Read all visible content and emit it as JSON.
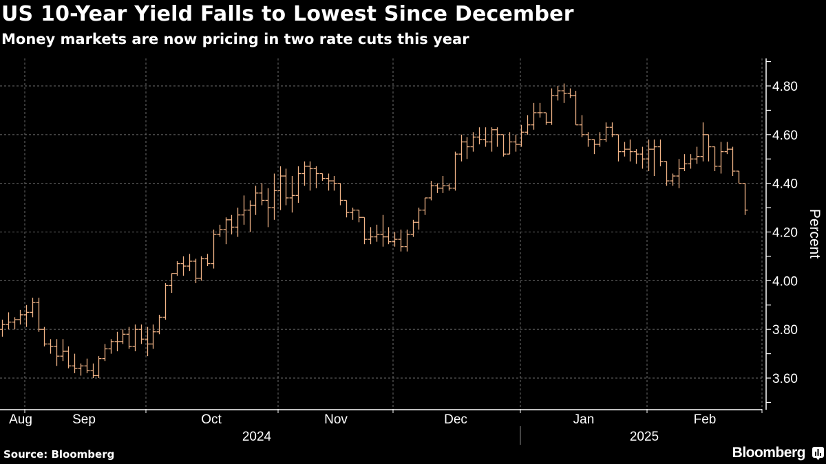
{
  "header": {
    "title": "US 10-Year Yield Falls to Lowest Since December",
    "subtitle": "Money markets are now pricing in two rate cuts this year"
  },
  "footer": {
    "source": "Source: Bloomberg",
    "brand": "Bloomberg"
  },
  "colors": {
    "background": "#000000",
    "bars": "#f2b487",
    "grid": "#6e6e6e",
    "text": "#ffffff"
  },
  "chart_data": {
    "type": "ohlc",
    "title": "US 10-Year Yield Falls to Lowest Since December",
    "subtitle": "Money markets are now pricing in two rate cuts this year",
    "xlabel": "",
    "ylabel": "Percent",
    "ylim": [
      3.54,
      4.9
    ],
    "yticks": [
      3.6,
      3.8,
      4.0,
      4.2,
      4.4,
      4.6,
      4.8
    ],
    "ytick_labels": [
      "3.60",
      "3.80",
      "4.00",
      "4.20",
      "4.40",
      "4.60",
      "4.80"
    ],
    "y_axis_position": "right",
    "grid": true,
    "x_month_labels": [
      "Aug",
      "Sep",
      "Oct",
      "Nov",
      "Dec",
      "Jan",
      "Feb"
    ],
    "x_year_labels": [
      "2024",
      "2025"
    ],
    "x_start": "2024-07-24",
    "x_end": "2025-02-21",
    "series": [
      {
        "name": "US 10-Year Yield",
        "ohlc": [
          [
            3.8,
            3.84,
            3.77,
            3.82
          ],
          [
            3.82,
            3.87,
            3.8,
            3.83
          ],
          [
            3.83,
            3.85,
            3.8,
            3.84
          ],
          [
            3.84,
            3.88,
            3.82,
            3.86
          ],
          [
            3.86,
            3.9,
            3.81,
            3.87
          ],
          [
            3.87,
            3.93,
            3.85,
            3.91
          ],
          [
            3.91,
            3.93,
            3.79,
            3.8
          ],
          [
            3.8,
            3.81,
            3.73,
            3.74
          ],
          [
            3.74,
            3.76,
            3.7,
            3.73
          ],
          [
            3.73,
            3.76,
            3.65,
            3.69
          ],
          [
            3.69,
            3.76,
            3.67,
            3.71
          ],
          [
            3.71,
            3.73,
            3.64,
            3.65
          ],
          [
            3.65,
            3.7,
            3.62,
            3.64
          ],
          [
            3.64,
            3.66,
            3.61,
            3.65
          ],
          [
            3.65,
            3.68,
            3.62,
            3.63
          ],
          [
            3.63,
            3.66,
            3.6,
            3.61
          ],
          [
            3.61,
            3.69,
            3.6,
            3.68
          ],
          [
            3.68,
            3.74,
            3.67,
            3.72
          ],
          [
            3.72,
            3.76,
            3.7,
            3.75
          ],
          [
            3.75,
            3.79,
            3.71,
            3.75
          ],
          [
            3.75,
            3.8,
            3.74,
            3.78
          ],
          [
            3.78,
            3.81,
            3.72,
            3.73
          ],
          [
            3.73,
            3.82,
            3.71,
            3.8
          ],
          [
            3.8,
            3.82,
            3.74,
            3.76
          ],
          [
            3.76,
            3.81,
            3.69,
            3.74
          ],
          [
            3.74,
            3.82,
            3.72,
            3.79
          ],
          [
            3.79,
            3.86,
            3.78,
            3.85
          ],
          [
            3.85,
            3.99,
            3.84,
            3.98
          ],
          [
            3.98,
            4.03,
            3.95,
            4.03
          ],
          [
            4.03,
            4.08,
            4.02,
            4.07
          ],
          [
            4.07,
            4.1,
            4.02,
            4.06
          ],
          [
            4.06,
            4.11,
            4.04,
            4.08
          ],
          [
            4.08,
            4.09,
            3.99,
            4.01
          ],
          [
            4.01,
            4.1,
            4.0,
            4.09
          ],
          [
            4.09,
            4.11,
            4.06,
            4.07
          ],
          [
            4.07,
            4.21,
            4.05,
            4.19
          ],
          [
            4.19,
            4.23,
            4.18,
            4.21
          ],
          [
            4.21,
            4.26,
            4.15,
            4.25
          ],
          [
            4.25,
            4.27,
            4.19,
            4.22
          ],
          [
            4.22,
            4.3,
            4.18,
            4.27
          ],
          [
            4.27,
            4.35,
            4.23,
            4.29
          ],
          [
            4.29,
            4.33,
            4.2,
            4.31
          ],
          [
            4.31,
            4.39,
            4.27,
            4.36
          ],
          [
            4.36,
            4.4,
            4.31,
            4.33
          ],
          [
            4.33,
            4.38,
            4.22,
            4.3
          ],
          [
            4.3,
            4.44,
            4.25,
            4.37
          ],
          [
            4.37,
            4.47,
            4.29,
            4.43
          ],
          [
            4.43,
            4.46,
            4.31,
            4.34
          ],
          [
            4.34,
            4.43,
            4.28,
            4.35
          ],
          [
            4.35,
            4.47,
            4.32,
            4.44
          ],
          [
            4.44,
            4.49,
            4.39,
            4.47
          ],
          [
            4.47,
            4.49,
            4.37,
            4.46
          ],
          [
            4.46,
            4.47,
            4.38,
            4.44
          ],
          [
            4.44,
            4.43,
            4.41,
            4.42
          ],
          [
            4.42,
            4.44,
            4.37,
            4.41
          ],
          [
            4.41,
            4.43,
            4.37,
            4.4
          ],
          [
            4.4,
            4.36,
            4.31,
            4.33
          ],
          [
            4.33,
            4.32,
            4.26,
            4.28
          ],
          [
            4.28,
            4.3,
            4.25,
            4.29
          ],
          [
            4.29,
            4.29,
            4.24,
            4.26
          ],
          [
            4.26,
            4.25,
            4.15,
            4.17
          ],
          [
            4.17,
            4.22,
            4.15,
            4.18
          ],
          [
            4.18,
            4.23,
            4.16,
            4.19
          ],
          [
            4.19,
            4.27,
            4.14,
            4.18
          ],
          [
            4.18,
            4.22,
            4.15,
            4.16
          ],
          [
            4.16,
            4.2,
            4.14,
            4.17
          ],
          [
            4.17,
            4.21,
            4.12,
            4.14
          ],
          [
            4.14,
            4.21,
            4.12,
            4.19
          ],
          [
            4.19,
            4.25,
            4.18,
            4.24
          ],
          [
            4.24,
            4.3,
            4.21,
            4.29
          ],
          [
            4.29,
            4.33,
            4.27,
            4.34
          ],
          [
            4.34,
            4.41,
            4.33,
            4.39
          ],
          [
            4.39,
            4.4,
            4.36,
            4.38
          ],
          [
            4.38,
            4.43,
            4.36,
            4.39
          ],
          [
            4.39,
            4.4,
            4.37,
            4.38
          ],
          [
            4.38,
            4.53,
            4.37,
            4.52
          ],
          [
            4.52,
            4.6,
            4.49,
            4.57
          ],
          [
            4.57,
            4.59,
            4.5,
            4.55
          ],
          [
            4.55,
            4.61,
            4.53,
            4.59
          ],
          [
            4.59,
            4.63,
            4.56,
            4.58
          ],
          [
            4.58,
            4.63,
            4.55,
            4.57
          ],
          [
            4.57,
            4.63,
            4.53,
            4.62
          ],
          [
            4.62,
            4.63,
            4.55,
            4.6
          ],
          [
            4.6,
            4.56,
            4.51,
            4.52
          ],
          [
            4.52,
            4.61,
            4.52,
            4.57
          ],
          [
            4.57,
            4.6,
            4.53,
            4.56
          ],
          [
            4.56,
            4.64,
            4.55,
            4.61
          ],
          [
            4.61,
            4.68,
            4.6,
            4.64
          ],
          [
            4.64,
            4.73,
            4.62,
            4.69
          ],
          [
            4.69,
            4.73,
            4.67,
            4.69
          ],
          [
            4.69,
            4.69,
            4.64,
            4.65
          ],
          [
            4.65,
            4.79,
            4.64,
            4.76
          ],
          [
            4.76,
            4.8,
            4.74,
            4.78
          ],
          [
            4.78,
            4.81,
            4.73,
            4.77
          ],
          [
            4.77,
            4.79,
            4.75,
            4.76
          ],
          [
            4.76,
            4.78,
            4.66,
            4.64
          ],
          [
            4.64,
            4.68,
            4.59,
            4.6
          ],
          [
            4.6,
            4.61,
            4.55,
            4.58
          ],
          [
            4.58,
            4.58,
            4.52,
            4.56
          ],
          [
            4.56,
            4.61,
            4.55,
            4.58
          ],
          [
            4.58,
            4.65,
            4.57,
            4.63
          ],
          [
            4.63,
            4.65,
            4.59,
            4.6
          ],
          [
            4.6,
            4.59,
            4.49,
            4.53
          ],
          [
            4.53,
            4.57,
            4.51,
            4.54
          ],
          [
            4.54,
            4.58,
            4.49,
            4.53
          ],
          [
            4.53,
            4.54,
            4.48,
            4.52
          ],
          [
            4.52,
            4.55,
            4.46,
            4.5
          ],
          [
            4.5,
            4.58,
            4.45,
            4.54
          ],
          [
            4.54,
            4.58,
            4.43,
            4.55
          ],
          [
            4.55,
            4.58,
            4.47,
            4.49
          ],
          [
            4.49,
            4.48,
            4.39,
            4.41
          ],
          [
            4.41,
            4.44,
            4.39,
            4.43
          ],
          [
            4.43,
            4.5,
            4.38,
            4.46
          ],
          [
            4.46,
            4.52,
            4.45,
            4.48
          ],
          [
            4.48,
            4.52,
            4.46,
            4.5
          ],
          [
            4.5,
            4.55,
            4.48,
            4.51
          ],
          [
            4.51,
            4.65,
            4.49,
            4.6
          ],
          [
            4.6,
            4.59,
            4.49,
            4.55
          ],
          [
            4.55,
            4.54,
            4.45,
            4.47
          ],
          [
            4.47,
            4.57,
            4.44,
            4.53
          ],
          [
            4.53,
            4.57,
            4.52,
            4.54
          ],
          [
            4.54,
            4.55,
            4.43,
            4.45
          ],
          [
            4.45,
            4.45,
            4.4,
            4.4
          ],
          [
            4.4,
            4.4,
            4.27,
            4.29
          ]
        ]
      }
    ]
  }
}
